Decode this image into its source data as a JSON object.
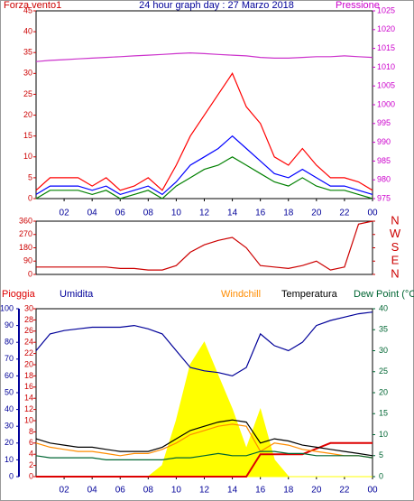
{
  "chart_data": [
    {
      "type": "line",
      "title": "24 hour graph day : 27 Marzo 2018",
      "ylabel": "Forza vento1",
      "y2label": "Pressione",
      "x": [
        0,
        1,
        2,
        3,
        4,
        5,
        6,
        7,
        8,
        9,
        10,
        11,
        12,
        13,
        14,
        15,
        16,
        17,
        18,
        19,
        20,
        21,
        22,
        23,
        24
      ],
      "xlim": [
        0,
        24
      ],
      "xticks": [
        {
          "value": 2,
          "label": "02"
        },
        {
          "value": 4,
          "label": "04"
        },
        {
          "value": 6,
          "label": "06"
        },
        {
          "value": 8,
          "label": "08"
        },
        10,
        12,
        14,
        16,
        18,
        20,
        22,
        {
          "value": 24,
          "label": "00"
        }
      ],
      "ylim": [
        0,
        45
      ],
      "yticks": [
        0,
        5,
        10,
        15,
        20,
        25,
        30,
        35,
        40,
        45
      ],
      "y2lim": [
        975,
        1025
      ],
      "y2ticks": [
        975,
        980,
        985,
        990,
        995,
        1000,
        1005,
        1010,
        1015,
        1020,
        1025
      ],
      "series": [
        {
          "color": "#ff0000",
          "values": [
            2,
            5,
            5,
            5,
            3,
            5,
            2,
            3,
            5,
            2,
            8,
            15,
            20,
            25,
            30,
            22,
            18,
            10,
            8,
            12,
            8,
            5,
            5,
            4,
            2
          ]
        },
        {
          "color": "#0000ff",
          "values": [
            1,
            3,
            3,
            3,
            2,
            3,
            1,
            2,
            3,
            1,
            4,
            8,
            10,
            12,
            15,
            12,
            9,
            6,
            5,
            7,
            5,
            3,
            3,
            2,
            1
          ]
        },
        {
          "color": "#008000",
          "values": [
            0,
            2,
            2,
            2,
            1,
            2,
            0,
            1,
            2,
            0,
            3,
            5,
            7,
            8,
            10,
            8,
            6,
            4,
            3,
            5,
            3,
            2,
            2,
            1,
            0
          ]
        },
        {
          "color": "#cc33cc",
          "axis": "y2",
          "values": [
            1011.5,
            1011.8,
            1012,
            1012.2,
            1012.4,
            1012.6,
            1012.8,
            1013,
            1013.2,
            1013.4,
            1013.6,
            1013.8,
            1013.6,
            1013.4,
            1013.2,
            1013,
            1012.6,
            1012.4,
            1012.4,
            1012.6,
            1012.8,
            1012.8,
            1013,
            1012.8,
            1012.6
          ]
        }
      ]
    },
    {
      "type": "line",
      "x": [
        0,
        1,
        2,
        3,
        4,
        5,
        6,
        7,
        8,
        9,
        10,
        11,
        12,
        13,
        14,
        15,
        16,
        17,
        18,
        19,
        20,
        21,
        22,
        23,
        24
      ],
      "xlim": [
        0,
        24
      ],
      "ylim": [
        0,
        360
      ],
      "yticks": [
        0,
        90,
        180,
        270,
        360
      ],
      "y2lim": [
        0,
        360
      ],
      "y2ticks": [
        {
          "value": 360,
          "label": "N"
        },
        {
          "value": 270,
          "label": "W"
        },
        {
          "value": 180,
          "label": "S"
        },
        {
          "value": 90,
          "label": "E"
        },
        {
          "value": 0,
          "label": "N"
        }
      ],
      "series": [
        {
          "color": "#cc0000",
          "values": [
            50,
            50,
            50,
            50,
            50,
            50,
            40,
            40,
            30,
            30,
            60,
            150,
            200,
            230,
            250,
            180,
            60,
            50,
            40,
            60,
            90,
            30,
            50,
            340,
            360
          ]
        }
      ]
    },
    {
      "type": "line",
      "x": [
        0,
        1,
        2,
        3,
        4,
        5,
        6,
        7,
        8,
        9,
        10,
        11,
        12,
        13,
        14,
        15,
        16,
        17,
        18,
        19,
        20,
        21,
        22,
        23,
        24
      ],
      "xlim": [
        0,
        24
      ],
      "xticks": [
        {
          "value": 2,
          "label": "02"
        },
        {
          "value": 4,
          "label": "04"
        },
        {
          "value": 6,
          "label": "06"
        },
        {
          "value": 8,
          "label": "08"
        },
        10,
        12,
        14,
        16,
        18,
        20,
        22,
        {
          "value": 24,
          "label": "00"
        }
      ],
      "ylim": [
        0,
        30
      ],
      "yticks": [
        0,
        2,
        4,
        6,
        8,
        10,
        12,
        14,
        16,
        18,
        20,
        22,
        24,
        26,
        28,
        30
      ],
      "y3lim": [
        0,
        100
      ],
      "y3ticks": [
        0,
        10,
        20,
        30,
        40,
        50,
        60,
        70,
        80,
        90,
        100
      ],
      "y2lim": [
        0,
        40
      ],
      "y2ticks": [
        0,
        5,
        10,
        15,
        20,
        25,
        30,
        35,
        40
      ],
      "series": [
        {
          "color": "#ffff00",
          "area": true,
          "values": [
            0,
            0,
            0,
            0,
            0,
            0,
            0,
            0,
            0,
            2,
            10,
            20,
            24,
            18,
            12,
            5,
            12,
            3,
            0,
            0,
            0,
            0,
            0,
            0,
            0
          ]
        },
        {
          "name": "Pioggia",
          "color": "#dd0000",
          "values": [
            0,
            0,
            0,
            0,
            0,
            0,
            0,
            0,
            0,
            0,
            0,
            0,
            0,
            0,
            0,
            0,
            4,
            4,
            4,
            4,
            5,
            6,
            6,
            6,
            6
          ]
        },
        {
          "name": "Umidita",
          "color": "#000099",
          "axis": "y3",
          "values": [
            75,
            85,
            87,
            88,
            89,
            89,
            89,
            90,
            88,
            85,
            75,
            65,
            63,
            62,
            60,
            65,
            85,
            78,
            75,
            80,
            90,
            93,
            95,
            97,
            98
          ]
        },
        {
          "name": "Windchill",
          "color": "#ff8c00",
          "axis": "y2",
          "values": [
            8,
            7,
            6.5,
            6,
            6,
            5.5,
            5,
            5.5,
            5.5,
            6.5,
            8,
            10,
            11,
            12,
            12.5,
            12,
            6,
            8,
            7.5,
            6.5,
            6,
            5.5,
            5,
            5,
            4.5
          ]
        },
        {
          "name": "Temperatura",
          "color": "#000000",
          "axis": "y2",
          "values": [
            9,
            8,
            7.5,
            7,
            7,
            6.5,
            6,
            6,
            6,
            7,
            9,
            11,
            12,
            13,
            13.5,
            13,
            8,
            9,
            8.5,
            7.5,
            7,
            6.5,
            6,
            5.5,
            5
          ]
        },
        {
          "name": "Dew Point (°C",
          "color": "#006633",
          "axis": "y2",
          "values": [
            5,
            4.5,
            4.5,
            4.5,
            4.5,
            4,
            4,
            4,
            4,
            4,
            4.5,
            4.5,
            5,
            5.5,
            5,
            5,
            6,
            6,
            5.5,
            5.5,
            5,
            5,
            5,
            5,
            4.5
          ]
        }
      ]
    }
  ]
}
